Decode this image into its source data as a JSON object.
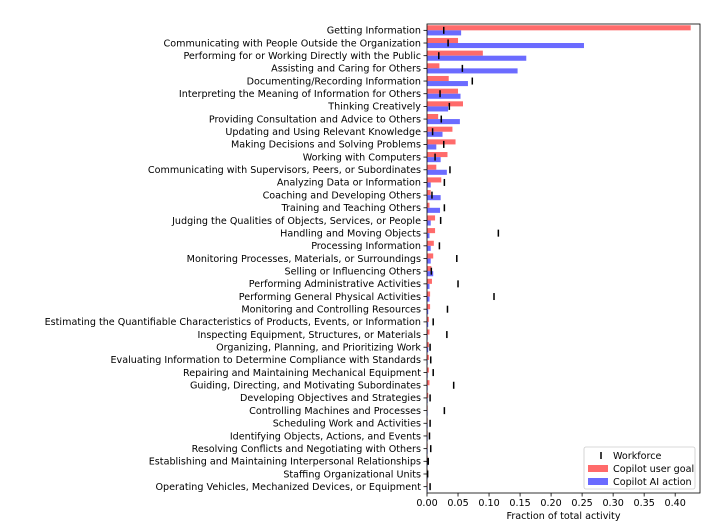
{
  "chart_data": {
    "type": "bar",
    "orientation": "horizontal",
    "xlabel": "Fraction of total activity",
    "xlim": [
      0,
      0.44
    ],
    "xticks": [
      "0.00",
      "0.05",
      "0.10",
      "0.15",
      "0.20",
      "0.25",
      "0.30",
      "0.35",
      "0.40"
    ],
    "grid": false,
    "legend_position": "bottom-right",
    "colors": {
      "user_goal": "#ff6b6b",
      "ai_action": "#6b6bff",
      "workforce": "#000000"
    },
    "legend": {
      "workforce": "Workforce",
      "user_goal": "Copilot user goal",
      "ai_action": "Copilot AI action"
    },
    "categories": [
      "Getting Information",
      "Communicating with People Outside the Organization",
      "Performing for or Working Directly with the Public",
      "Assisting and Caring for Others",
      "Documenting/Recording Information",
      "Interpreting the Meaning of Information for Others",
      "Thinking Creatively",
      "Providing Consultation and Advice to Others",
      "Updating and Using Relevant Knowledge",
      "Making Decisions and Solving Problems",
      "Working with Computers",
      "Communicating with Supervisors, Peers, or Subordinates",
      "Analyzing Data or Information",
      "Coaching and Developing Others",
      "Training and Teaching Others",
      "Judging the Qualities of Objects, Services, or People",
      "Handling and Moving Objects",
      "Processing Information",
      "Monitoring Processes, Materials, or Surroundings",
      "Selling or Influencing Others",
      "Performing Administrative Activities",
      "Performing General Physical Activities",
      "Monitoring and Controlling Resources",
      "Estimating the Quantifiable Characteristics of Products, Events, or Information",
      "Inspecting Equipment, Structures, or Materials",
      "Organizing, Planning, and Prioritizing Work",
      "Evaluating Information to Determine Compliance with Standards",
      "Repairing and Maintaining Mechanical Equipment",
      "Guiding, Directing, and Motivating Subordinates",
      "Developing Objectives and Strategies",
      "Controlling Machines and Processes",
      "Scheduling Work and Activities",
      "Identifying Objects, Actions, and Events",
      "Resolving Conflicts and Negotiating with Others",
      "Establishing and Maintaining Interpersonal Relationships",
      "Staffing Organizational Units",
      "Operating Vehicles, Mechanized Devices, or Equipment"
    ],
    "series": [
      {
        "name": "Copilot user goal",
        "key": "user_goal",
        "values": [
          0.425,
          0.05,
          0.09,
          0.02,
          0.035,
          0.05,
          0.058,
          0.018,
          0.041,
          0.046,
          0.033,
          0.015,
          0.023,
          0.006,
          0.004,
          0.013,
          0.013,
          0.011,
          0.01,
          0.007,
          0.008,
          0.005,
          0.005,
          0.003,
          0.004,
          0.003,
          0.003,
          0.003,
          0.004,
          0.002,
          0.001,
          0.001,
          0.001,
          0.001,
          0.001,
          0.001,
          0.001
        ]
      },
      {
        "name": "Copilot AI action",
        "key": "ai_action",
        "values": [
          0.055,
          0.253,
          0.16,
          0.146,
          0.066,
          0.054,
          0.034,
          0.053,
          0.025,
          0.015,
          0.022,
          0.032,
          0.006,
          0.022,
          0.021,
          0.006,
          0.004,
          0.006,
          0.006,
          0.01,
          0.004,
          0.004,
          0.002,
          0.002,
          0.001,
          0.002,
          0.001,
          0.001,
          0.001,
          0.001,
          0.001,
          0.001,
          0.001,
          0.001,
          0.001,
          0.001,
          0.001
        ]
      },
      {
        "name": "Workforce",
        "key": "workforce",
        "marker": "tick",
        "values": [
          0.027,
          0.034,
          0.019,
          0.057,
          0.073,
          0.021,
          0.036,
          0.023,
          0.009,
          0.027,
          0.013,
          0.037,
          0.028,
          0.008,
          0.028,
          0.022,
          0.115,
          0.02,
          0.048,
          0.007,
          0.05,
          0.108,
          0.033,
          0.01,
          0.032,
          0.005,
          0.006,
          0.01,
          0.043,
          0.005,
          0.028,
          0.005,
          0.004,
          0.006,
          0.002,
          0.001,
          0.005
        ]
      }
    ]
  }
}
